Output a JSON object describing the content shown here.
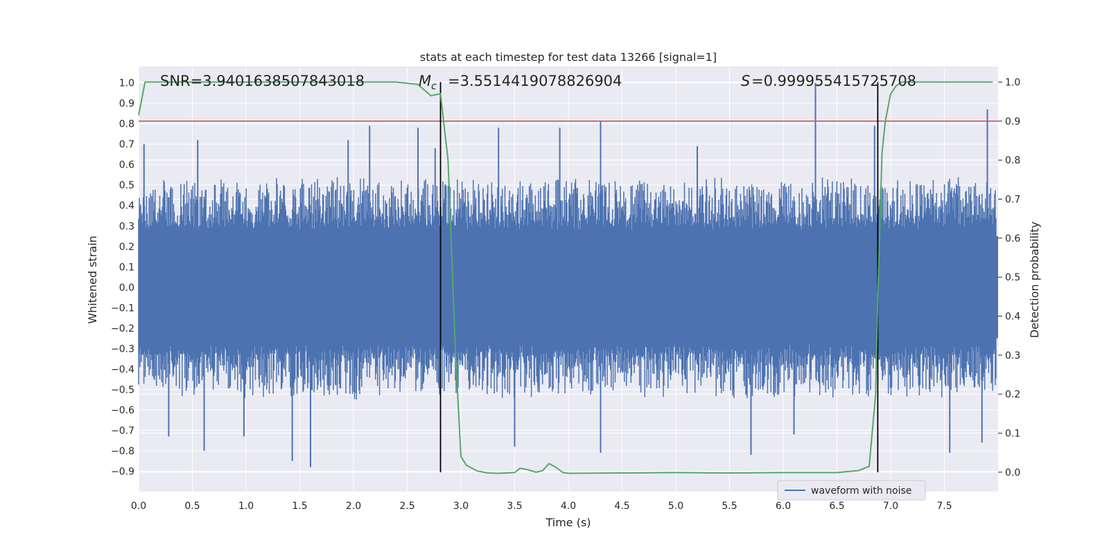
{
  "chart_data": {
    "type": "line",
    "title": "stats at each timestep for test data 13266 [signal=1]",
    "xlabel": "Time (s)",
    "ylabel": "Whitened strain",
    "y2label": "Detection probability",
    "xlim": [
      0.0,
      8.0
    ],
    "ylim": [
      -1.0,
      1.08
    ],
    "y2lim": [
      -0.05,
      1.04
    ],
    "xticks": [
      "0.0",
      "0.5",
      "1.0",
      "1.5",
      "2.0",
      "2.5",
      "3.0",
      "3.5",
      "4.0",
      "4.5",
      "5.0",
      "5.5",
      "6.0",
      "6.5",
      "7.0",
      "7.5"
    ],
    "yticks": [
      "-0.9",
      "-0.8",
      "-0.7",
      "-0.6",
      "-0.5",
      "-0.4",
      "-0.3",
      "-0.2",
      "-0.1",
      "0.0",
      "0.1",
      "0.2",
      "0.3",
      "0.4",
      "0.5",
      "0.6",
      "0.7",
      "0.8",
      "0.9",
      "1.0"
    ],
    "y2ticks": [
      "0.0",
      "0.1",
      "0.2",
      "0.3",
      "0.4",
      "0.5",
      "0.6",
      "0.7",
      "0.8",
      "0.9",
      "1.0"
    ],
    "grid": true,
    "legend": {
      "position": "lower-center-right",
      "entries": [
        "waveform with noise"
      ]
    },
    "annotations": {
      "snr": "SNR=3.9401638507843018",
      "mc": "=3.5514419078826904",
      "s": "=0.999955415725708"
    },
    "threshold_line": {
      "axis": "y2",
      "value": 0.9,
      "color": "#c44e52"
    },
    "vlines": [
      {
        "x": 2.81,
        "ymin": 0.0,
        "ymax": 1.0
      },
      {
        "x": 6.88,
        "ymin": 0.0,
        "ymax": 1.0
      }
    ],
    "series": [
      {
        "name": "waveform with noise",
        "color": "#4c72b0",
        "axis": "y1",
        "envelope_note": "dense noise",
        "peaks": [
          [
            0.05,
            0.7
          ],
          [
            0.28,
            -0.73
          ],
          [
            0.55,
            0.72
          ],
          [
            0.61,
            -0.8
          ],
          [
            0.98,
            -0.73
          ],
          [
            1.35,
            0.5
          ],
          [
            1.43,
            -0.85
          ],
          [
            1.6,
            -0.88
          ],
          [
            1.95,
            0.72
          ],
          [
            2.15,
            0.79
          ],
          [
            2.6,
            0.78
          ],
          [
            2.76,
            0.68
          ],
          [
            3.35,
            0.78
          ],
          [
            3.5,
            -0.78
          ],
          [
            3.92,
            0.78
          ],
          [
            4.3,
            0.81
          ],
          [
            4.3,
            -0.81
          ],
          [
            5.2,
            0.69
          ],
          [
            5.7,
            -0.82
          ],
          [
            6.1,
            -0.72
          ],
          [
            6.3,
            1.0
          ],
          [
            6.85,
            0.79
          ],
          [
            7.55,
            -0.81
          ],
          [
            7.9,
            0.87
          ],
          [
            7.85,
            -0.76
          ]
        ]
      },
      {
        "name": "",
        "color": "#55a868",
        "axis": "y2",
        "x": [
          0.0,
          0.06,
          0.5,
          1.0,
          1.5,
          2.0,
          2.4,
          2.6,
          2.72,
          2.81,
          2.88,
          2.95,
          3.0,
          3.05,
          3.15,
          3.25,
          3.35,
          3.5,
          3.55,
          3.6,
          3.7,
          3.76,
          3.82,
          3.88,
          3.95,
          4.0,
          4.5,
          5.0,
          5.5,
          6.0,
          6.5,
          6.7,
          6.8,
          6.86,
          6.88,
          6.92,
          6.95,
          7.0,
          7.05,
          7.1,
          7.3,
          7.5,
          7.95
        ],
        "y": [
          0.915,
          1.0,
          1.0,
          1.0,
          1.0,
          1.0,
          1.0,
          0.994,
          0.965,
          0.97,
          0.8,
          0.3,
          0.04,
          0.018,
          0.003,
          -0.002,
          -0.003,
          -0.001,
          0.01,
          0.008,
          0.0,
          0.004,
          0.022,
          0.013,
          -0.001,
          -0.003,
          -0.002,
          -0.001,
          -0.002,
          -0.001,
          -0.001,
          0.004,
          0.015,
          0.2,
          0.45,
          0.82,
          0.9,
          0.97,
          0.99,
          1.0,
          1.0,
          1.0,
          1.0
        ]
      }
    ]
  }
}
